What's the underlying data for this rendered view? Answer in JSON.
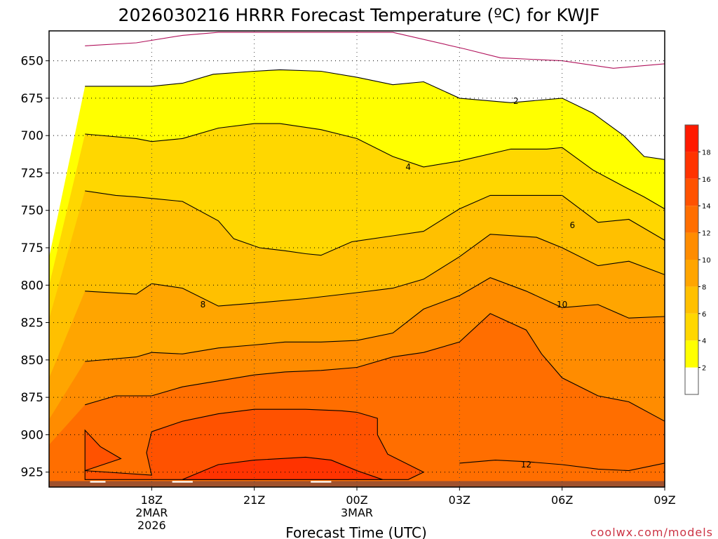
{
  "chart_data": {
    "type": "contour",
    "title": "2026030216 HRRR Forecast Temperature (ºC) for KWJF",
    "xlabel": "Forecast Time (UTC)",
    "ylabel": "",
    "x_range_hours": [
      -2,
      10
    ],
    "y_range_hpa": [
      630,
      935
    ],
    "y_ticks": [
      650,
      675,
      700,
      725,
      750,
      775,
      800,
      825,
      850,
      875,
      900,
      925
    ],
    "x_ticks": [
      {
        "hour": 0,
        "lines": [
          "18Z",
          "2MAR",
          "2026"
        ]
      },
      {
        "hour": 2,
        "lines": [
          "21Z"
        ]
      },
      {
        "hour": 4,
        "lines": [
          "00Z",
          "3MAR"
        ]
      },
      {
        "hour": 6,
        "lines": [
          "03Z"
        ]
      },
      {
        "hour": 8,
        "lines": [
          "06Z"
        ]
      },
      {
        "hour": 10,
        "lines": [
          "09Z"
        ]
      }
    ],
    "colorbar": {
      "levels": [
        2,
        4,
        6,
        8,
        10,
        12,
        14,
        16,
        18
      ],
      "colors": [
        "#ffffff",
        "#ffff00",
        "#ffd700",
        "#ffc000",
        "#ffa500",
        "#ff8c00",
        "#ff6e00",
        "#ff5200",
        "#ff3300",
        "#ff1a00"
      ]
    },
    "contour_labels": [
      {
        "text": "2",
        "hour": 7.1,
        "hpa": 677
      },
      {
        "text": "4",
        "hour": 5.0,
        "hpa": 721
      },
      {
        "text": "6",
        "hour": 8.2,
        "hpa": 760
      },
      {
        "text": "8",
        "hour": 1.0,
        "hpa": 813
      },
      {
        "text": "10",
        "hour": 8.0,
        "hpa": 813
      },
      {
        "text": "12",
        "hour": 7.3,
        "hpa": 920
      }
    ],
    "contours": [
      {
        "level": 0,
        "fill": null,
        "points": [
          [
            -1.3,
            640
          ],
          [
            -0.3,
            638
          ],
          [
            0.6,
            633
          ],
          [
            1.3,
            631
          ],
          [
            4.7,
            631
          ],
          [
            6.1,
            642
          ],
          [
            6.8,
            648
          ],
          [
            8.0,
            650
          ],
          [
            9.0,
            655
          ],
          [
            10,
            652
          ]
        ]
      },
      {
        "level": 2,
        "fill": "#ffff00",
        "points": [
          [
            -1.3,
            667
          ],
          [
            -0.7,
            667
          ],
          [
            0.0,
            667
          ],
          [
            0.6,
            665
          ],
          [
            1.2,
            659
          ],
          [
            2.0,
            657
          ],
          [
            2.5,
            656
          ],
          [
            3.3,
            657
          ],
          [
            4.0,
            661
          ],
          [
            4.7,
            666
          ],
          [
            5.3,
            664
          ],
          [
            6.0,
            675
          ],
          [
            7.0,
            678
          ],
          [
            8.0,
            675
          ],
          [
            8.6,
            685
          ],
          [
            9.2,
            700
          ],
          [
            9.6,
            714
          ],
          [
            10,
            716
          ]
        ]
      },
      {
        "level": 4,
        "fill": "#ffd700",
        "points": [
          [
            -1.3,
            699
          ],
          [
            -0.3,
            702
          ],
          [
            0.0,
            704
          ],
          [
            0.6,
            702
          ],
          [
            1.3,
            695
          ],
          [
            2.0,
            692
          ],
          [
            2.5,
            692
          ],
          [
            3.3,
            696
          ],
          [
            4.0,
            702
          ],
          [
            4.7,
            714
          ],
          [
            5.3,
            721
          ],
          [
            6.0,
            717
          ],
          [
            7.0,
            709
          ],
          [
            7.7,
            709
          ],
          [
            8.0,
            708
          ],
          [
            8.6,
            723
          ],
          [
            9.2,
            734
          ],
          [
            9.6,
            741
          ],
          [
            10,
            749
          ]
        ]
      },
      {
        "level": 6,
        "fill": "#ffc000",
        "points": [
          [
            -1.3,
            737
          ],
          [
            -0.7,
            740
          ],
          [
            -0.3,
            741
          ],
          [
            0.0,
            742
          ],
          [
            0.6,
            744
          ],
          [
            1.3,
            757
          ],
          [
            1.6,
            769
          ],
          [
            2.1,
            775
          ],
          [
            2.6,
            777
          ],
          [
            3.0,
            779
          ],
          [
            3.3,
            780
          ],
          [
            3.9,
            771
          ],
          [
            4.7,
            767
          ],
          [
            5.3,
            764
          ],
          [
            6.0,
            749
          ],
          [
            6.6,
            740
          ],
          [
            7.7,
            740
          ],
          [
            8.0,
            740
          ],
          [
            8.7,
            758
          ],
          [
            9.3,
            756
          ],
          [
            10,
            770
          ]
        ]
      },
      {
        "level": 8,
        "fill": "#ffa500",
        "points": [
          [
            -1.3,
            804
          ],
          [
            -0.3,
            806
          ],
          [
            0.0,
            799
          ],
          [
            0.6,
            802
          ],
          [
            1.3,
            814
          ],
          [
            2.0,
            812
          ],
          [
            3.0,
            809
          ],
          [
            4.0,
            805
          ],
          [
            4.7,
            802
          ],
          [
            5.3,
            796
          ],
          [
            6.0,
            781
          ],
          [
            6.6,
            766
          ],
          [
            7.5,
            768
          ],
          [
            8.0,
            775
          ],
          [
            8.7,
            787
          ],
          [
            9.3,
            784
          ],
          [
            10,
            793
          ]
        ]
      },
      {
        "level": 10,
        "fill": "#ff8c00",
        "points": [
          [
            -1.3,
            851
          ],
          [
            -0.3,
            848
          ],
          [
            0.0,
            845
          ],
          [
            0.6,
            846
          ],
          [
            1.3,
            842
          ],
          [
            2.0,
            840
          ],
          [
            2.6,
            838
          ],
          [
            3.3,
            838
          ],
          [
            4.0,
            837
          ],
          [
            4.7,
            832
          ],
          [
            5.3,
            816
          ],
          [
            6.0,
            807
          ],
          [
            6.6,
            795
          ],
          [
            7.3,
            804
          ],
          [
            8.0,
            815
          ],
          [
            8.7,
            813
          ],
          [
            9.3,
            822
          ],
          [
            10,
            821
          ]
        ]
      },
      {
        "level": 12,
        "fill": "#ff6e00",
        "points": [
          [
            -1.3,
            880
          ],
          [
            -0.7,
            874
          ],
          [
            -0.3,
            874
          ],
          [
            0.0,
            874
          ],
          [
            0.6,
            868
          ],
          [
            1.3,
            864
          ],
          [
            2.0,
            860
          ],
          [
            2.6,
            858
          ],
          [
            3.3,
            857
          ],
          [
            4.0,
            855
          ],
          [
            4.7,
            848
          ],
          [
            5.3,
            845
          ],
          [
            6.0,
            838
          ],
          [
            6.6,
            819
          ],
          [
            7.3,
            830
          ],
          [
            7.6,
            846
          ],
          [
            8.0,
            862
          ],
          [
            8.7,
            874
          ],
          [
            9.3,
            878
          ],
          [
            10,
            891
          ]
        ]
      }
    ],
    "inner_contours": [
      {
        "fill": "#ff5200",
        "points": [
          [
            -1.3,
            897
          ],
          [
            -1.0,
            908
          ],
          [
            -0.6,
            916
          ],
          [
            -1.3,
            924
          ],
          [
            0.0,
            927
          ],
          [
            -0.1,
            912
          ],
          [
            0.0,
            898
          ],
          [
            0.6,
            891
          ],
          [
            1.3,
            886
          ],
          [
            2.0,
            883
          ],
          [
            3.0,
            883
          ],
          [
            3.7,
            884
          ],
          [
            4.0,
            885
          ],
          [
            4.4,
            889
          ],
          [
            4.4,
            900
          ],
          [
            4.6,
            913
          ],
          [
            5.3,
            925
          ],
          [
            5.0,
            930
          ],
          [
            -1.3,
            930
          ]
        ]
      },
      {
        "fill": "#ff3300",
        "points": [
          [
            0.6,
            930
          ],
          [
            1.3,
            920
          ],
          [
            2.0,
            917
          ],
          [
            3.0,
            915
          ],
          [
            3.5,
            917
          ],
          [
            4.0,
            924
          ],
          [
            4.5,
            930
          ]
        ]
      }
    ],
    "twelve_contour": [
      [
        6.0,
        919
      ],
      [
        6.7,
        917
      ],
      [
        7.3,
        918
      ],
      [
        8.0,
        920
      ],
      [
        8.7,
        923
      ],
      [
        9.3,
        924
      ],
      [
        10,
        919
      ]
    ],
    "terrain": {
      "top_hpa": 931,
      "color": "#a0522d"
    },
    "watermark": "coolwx.com/models"
  }
}
